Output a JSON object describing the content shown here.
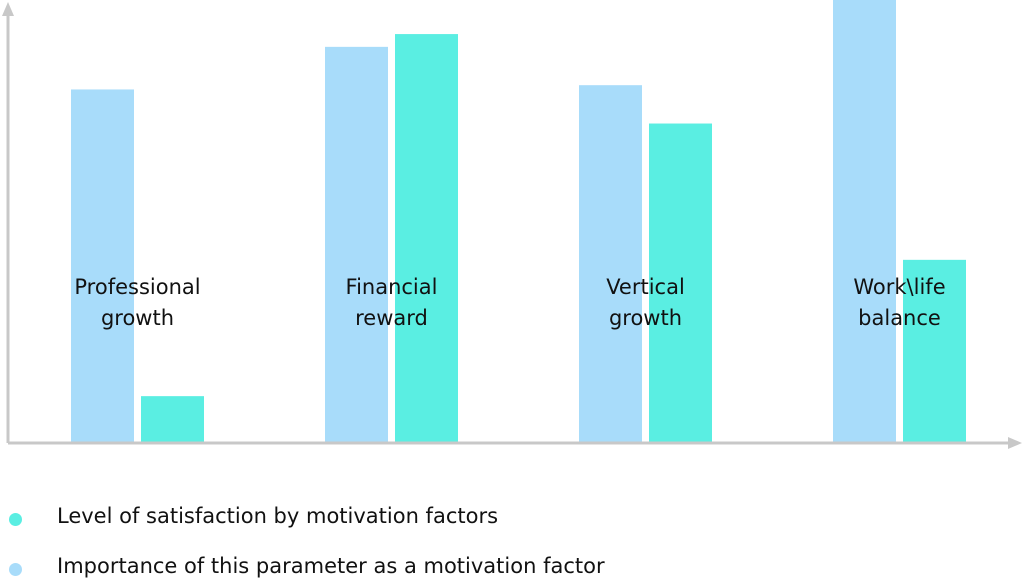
{
  "chart_data": {
    "type": "bar",
    "categories": [
      [
        "Professional",
        "growth"
      ],
      [
        "Financial",
        "reward"
      ],
      [
        "Vertical",
        "growth"
      ],
      [
        "Work\\life",
        "balance"
      ]
    ],
    "series": [
      {
        "name": "Importance of this parameter as a motivation factor",
        "color": "#a8dcfa",
        "values": [
          83,
          93,
          84,
          104
        ]
      },
      {
        "name": "Level of satisfaction by motivation factors",
        "color": "#5aeee2",
        "values": [
          11,
          96,
          75,
          43
        ]
      }
    ],
    "title": "",
    "xlabel": "",
    "ylabel": "",
    "ylim": [
      0,
      104
    ],
    "grid": false,
    "legend": "bottom-left"
  },
  "legend": [
    {
      "label": "Level of satisfaction by motivation factors",
      "color": "#5aeee2"
    },
    {
      "label": "Importance of this parameter as a motivation factor",
      "color": "#a8dcfa"
    }
  ]
}
